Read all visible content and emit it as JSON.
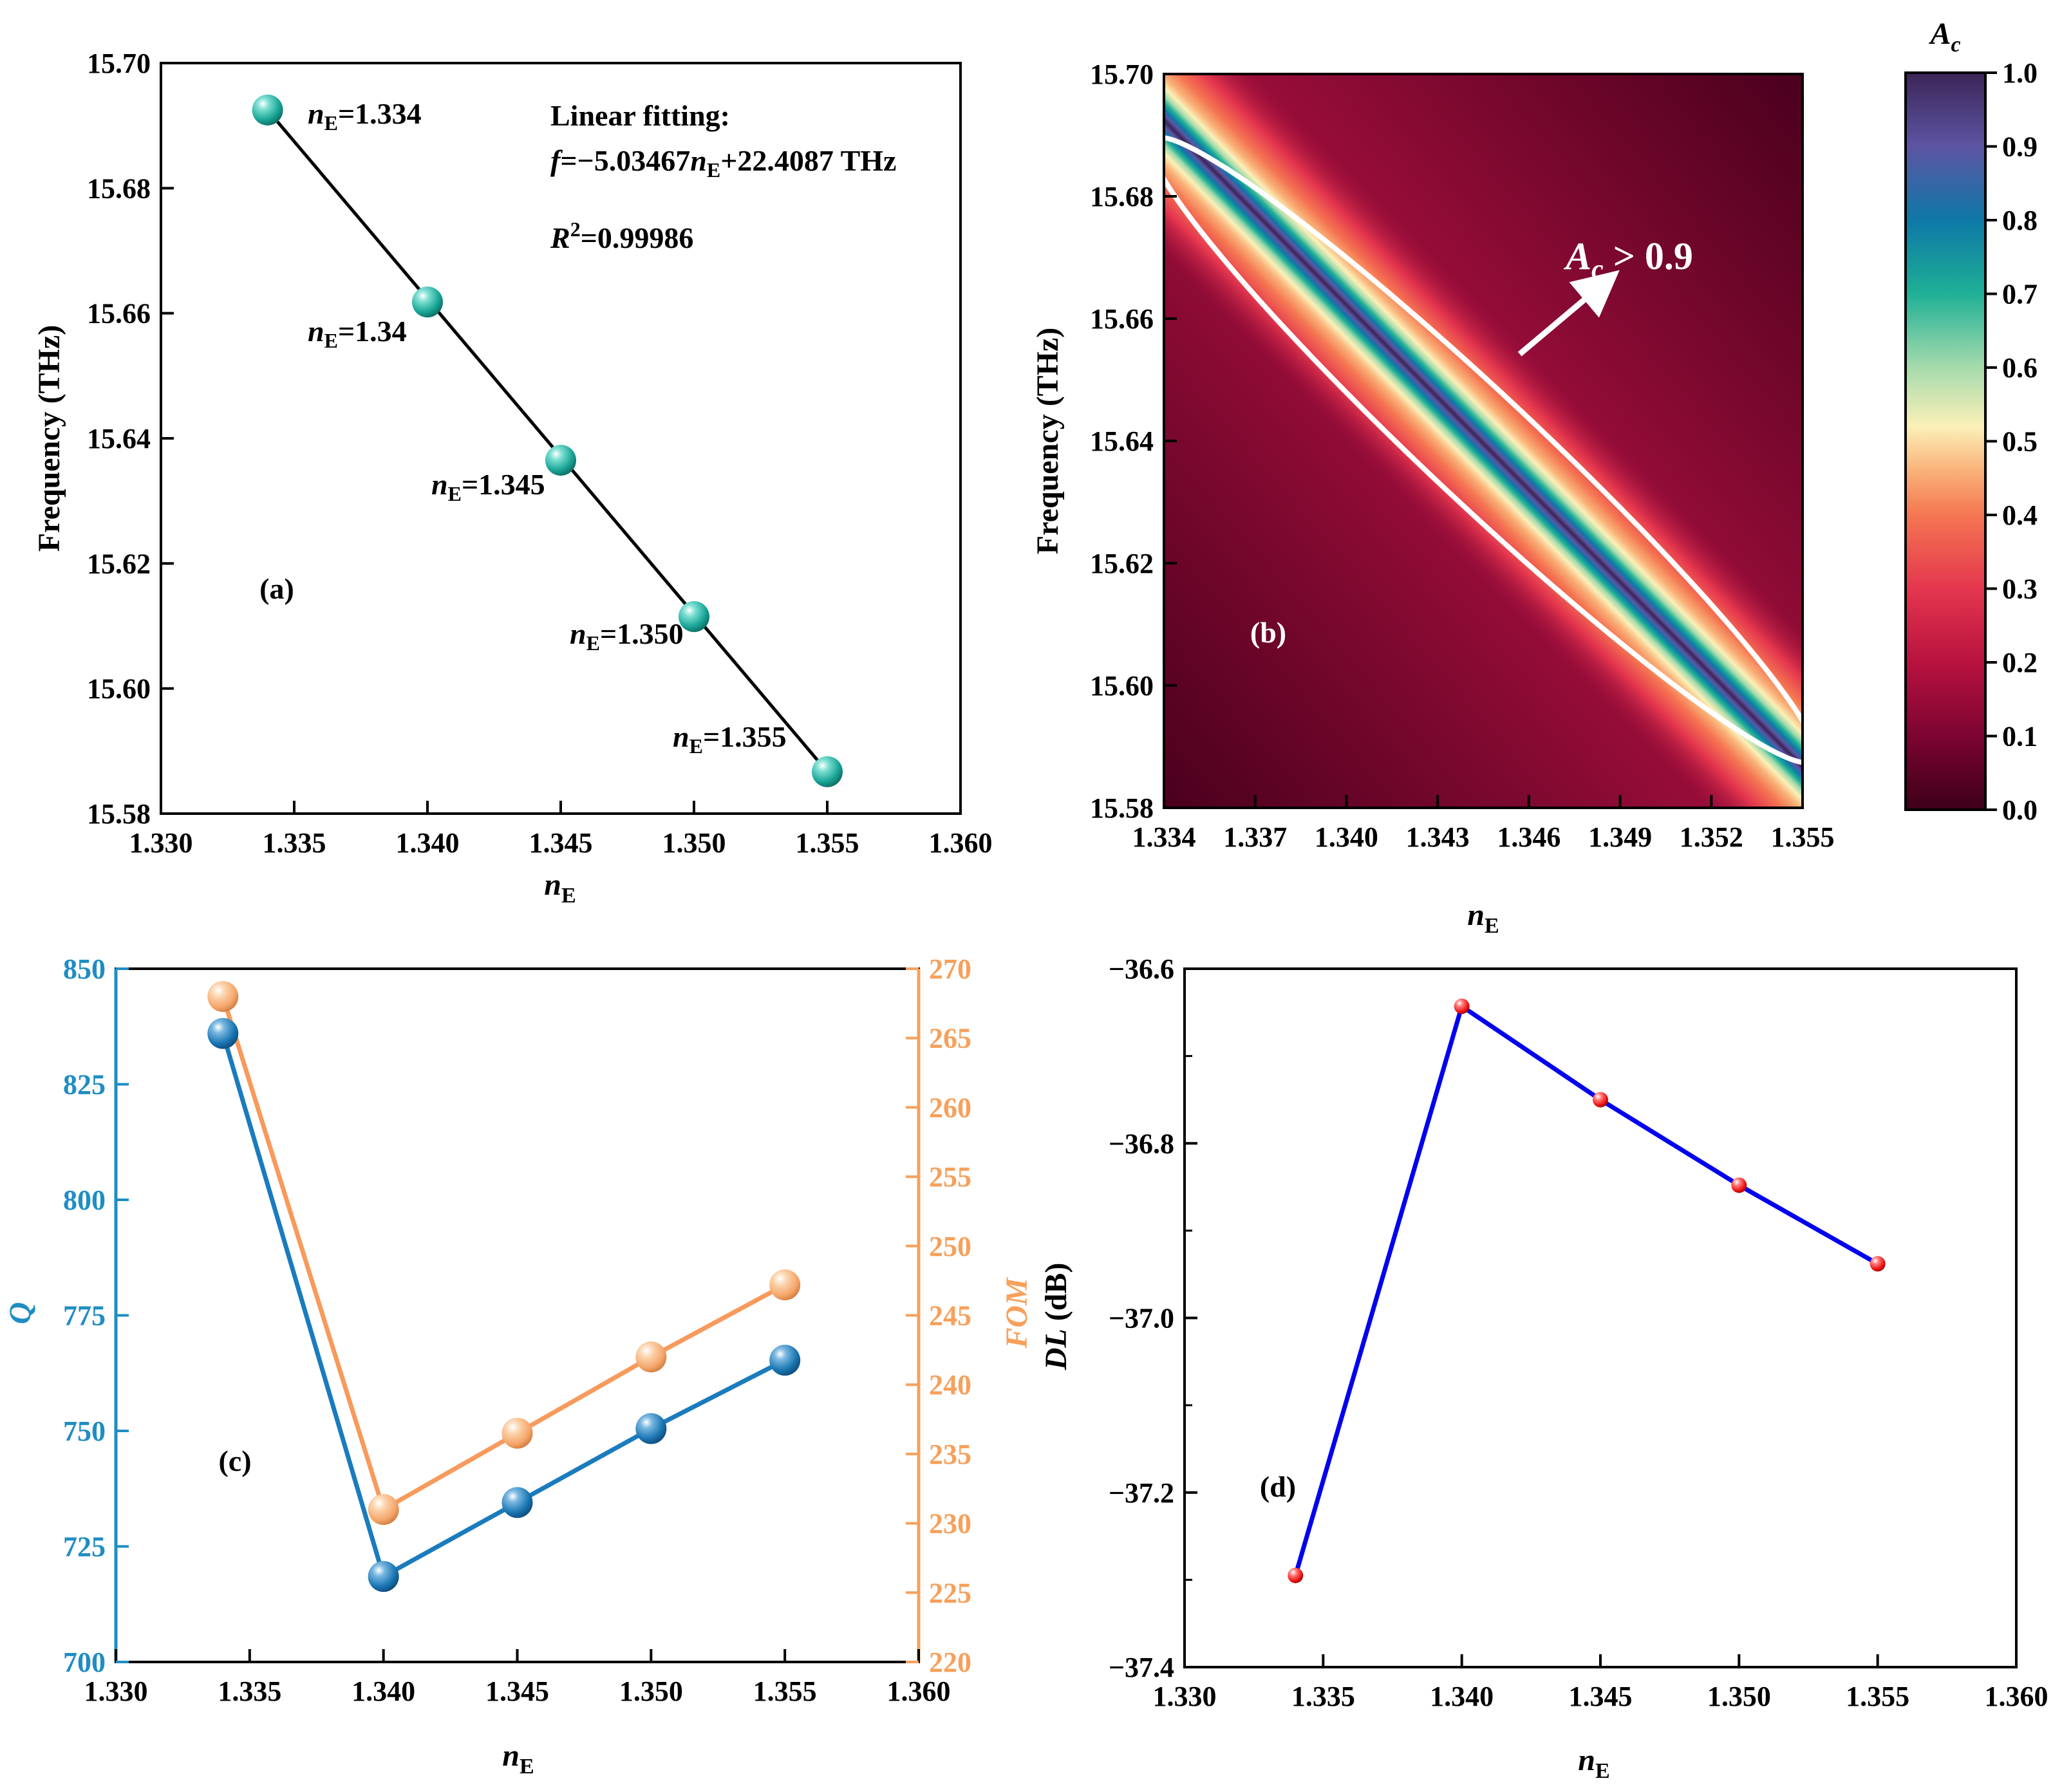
{
  "colors": {
    "teal": "#19a596",
    "blue_marker": "#1a76b3",
    "orange_marker": "#f4a468",
    "q_axis": "#1f8dc4",
    "fom_axis": "#f7a05b",
    "q_line": "#1a7bbd",
    "fom_line": "#f79a5c",
    "dl_line": "#0000ee",
    "dl_marker": "#ee1111",
    "ellipse": "#ffffff"
  },
  "chart_data": [
    {
      "id": "a",
      "type": "scatter",
      "panel_label": "(a)",
      "x": [
        1.334,
        1.34,
        1.345,
        1.35,
        1.355
      ],
      "y": [
        15.6925,
        15.6618,
        15.6365,
        15.6115,
        15.5867
      ],
      "point_labels": [
        {
          "name": "n",
          "sub": "E",
          "value": "=1.334"
        },
        {
          "name": "n",
          "sub": "E",
          "value": "=1.34"
        },
        {
          "name": "n",
          "sub": "E",
          "value": "=1.345"
        },
        {
          "name": "n",
          "sub": "E",
          "value": "=1.350"
        },
        {
          "name": "n",
          "sub": "E",
          "value": "=1.355"
        }
      ],
      "fit_title": "Linear fitting:",
      "fit_eq": {
        "f": "f",
        "mid": "=−5.03467",
        "n": "n",
        "sub": "E",
        "rest": "+22.4087 THz"
      },
      "r2": {
        "r": "R",
        "sup": "2",
        "val": "=0.99986"
      },
      "xlabel": {
        "main": "n",
        "sub": "E"
      },
      "ylabel": "Frequency (THz)",
      "xlim": [
        1.33,
        1.36
      ],
      "ylim": [
        15.58,
        15.7
      ],
      "xticks": [
        "1.330",
        "1.335",
        "1.340",
        "1.345",
        "1.350",
        "1.355",
        "1.360"
      ],
      "yticks": [
        "15.58",
        "15.60",
        "15.62",
        "15.64",
        "15.66",
        "15.68",
        "15.70"
      ]
    },
    {
      "id": "b",
      "type": "heatmap",
      "panel_label": "(b)",
      "xlabel": {
        "main": "n",
        "sub": "E"
      },
      "ylabel": "Frequency (THz)",
      "xlim": [
        1.334,
        1.355
      ],
      "ylim": [
        15.58,
        15.7
      ],
      "xticks": [
        "1.334",
        "1.337",
        "1.340",
        "1.343",
        "1.346",
        "1.349",
        "1.352",
        "1.355"
      ],
      "yticks": [
        "15.58",
        "15.60",
        "15.62",
        "15.64",
        "15.66",
        "15.68",
        "15.70"
      ],
      "ridge": {
        "slope": -5.03467,
        "intercept": 22.4087
      },
      "annotation": {
        "a": "A",
        "sub": "c",
        "rest": " > 0.9"
      },
      "ellipse_start": [
        1.334,
        15.6875
      ],
      "ellipse_end": [
        1.355,
        15.5895
      ],
      "arrow_from": [
        1.3457,
        15.6542
      ],
      "arrow_to": [
        1.3484,
        15.6655
      ],
      "colorbar": {
        "title": {
          "a": "A",
          "sub": "c"
        },
        "range": [
          0,
          1
        ],
        "ticks": [
          "0.0",
          "0.1",
          "0.2",
          "0.3",
          "0.4",
          "0.5",
          "0.6",
          "0.7",
          "0.8",
          "0.9",
          "1.0"
        ],
        "stops": [
          "#3d0018",
          "#7c0431",
          "#b8123f",
          "#e4364e",
          "#f57652",
          "#f9b279",
          "#fbf0b8",
          "#a6dbac",
          "#1fb096",
          "#0e78a7",
          "#5d54a3",
          "#3b2557"
        ]
      }
    },
    {
      "id": "c",
      "type": "line",
      "panel_label": "(c)",
      "x": [
        1.334,
        1.34,
        1.345,
        1.35,
        1.355
      ],
      "series": [
        {
          "name": "Q",
          "axis": "left",
          "values": [
            836,
            718.5,
            734.5,
            750.5,
            765.3
          ]
        },
        {
          "name": "FOM",
          "axis": "right",
          "values": [
            268,
            231,
            236.5,
            242,
            247.2
          ]
        }
      ],
      "xlabel": {
        "main": "n",
        "sub": "E"
      },
      "ylabel_left": "Q",
      "ylabel_right": "FOM",
      "xlim": [
        1.33,
        1.36
      ],
      "ylim_left": [
        700,
        850
      ],
      "ylim_right": [
        220,
        270
      ],
      "xticks": [
        "1.330",
        "1.335",
        "1.340",
        "1.345",
        "1.350",
        "1.355",
        "1.360"
      ],
      "yticks_left": [
        "700",
        "725",
        "750",
        "775",
        "800",
        "825",
        "850"
      ],
      "yticks_right": [
        "220",
        "225",
        "230",
        "235",
        "240",
        "245",
        "250",
        "255",
        "260",
        "265",
        "270"
      ]
    },
    {
      "id": "d",
      "type": "line",
      "panel_label": "(d)",
      "x": [
        1.334,
        1.34,
        1.345,
        1.35,
        1.355
      ],
      "values": [
        -37.295,
        -36.643,
        -36.75,
        -36.848,
        -36.938
      ],
      "xlabel": {
        "main": "n",
        "sub": "E"
      },
      "ylabel": {
        "main": "DL",
        "rest": " (dB)"
      },
      "xlim": [
        1.33,
        1.36
      ],
      "ylim": [
        -37.4,
        -36.6
      ],
      "xticks": [
        "1.330",
        "1.335",
        "1.340",
        "1.345",
        "1.350",
        "1.355",
        "1.360"
      ],
      "yticks": [
        "−37.4",
        "−37.2",
        "−37.0",
        "−36.8",
        "−36.6"
      ]
    }
  ]
}
